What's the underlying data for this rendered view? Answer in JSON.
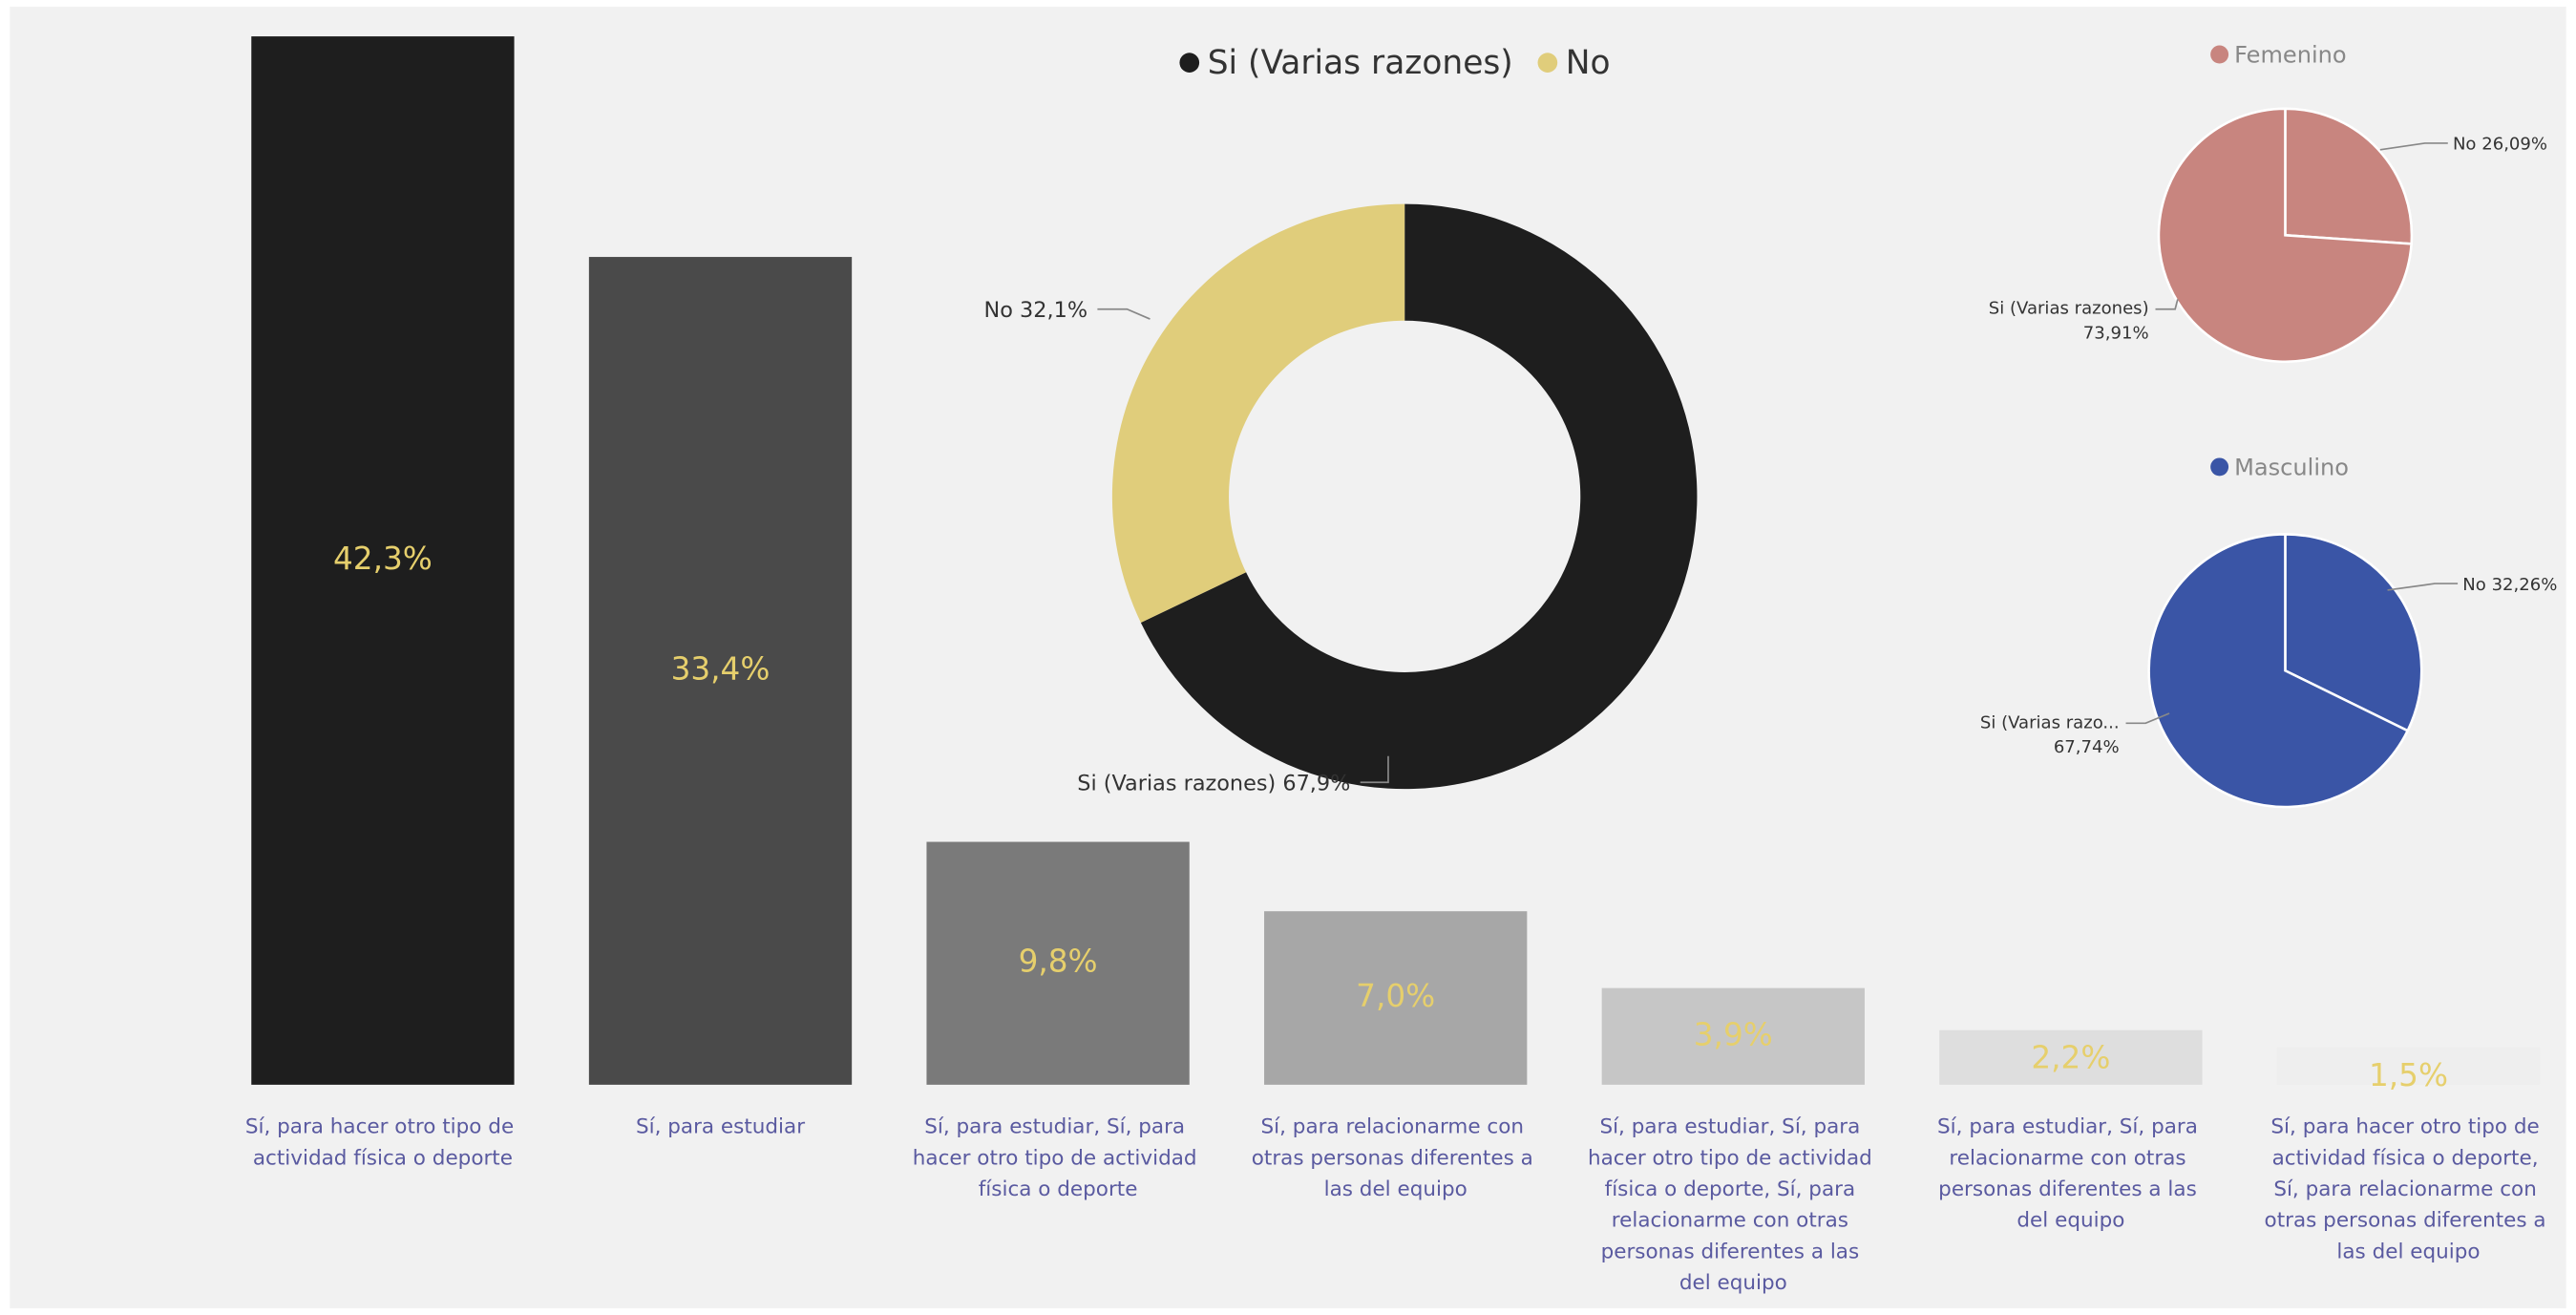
{
  "chart_data": [
    {
      "type": "bar",
      "categories": [
        "Sí, para hacer otro tipo de actividad física o deporte",
        "Sí, para estudiar",
        "Sí, para estudiar, Sí, para hacer otro tipo de actividad física o deporte",
        "Sí, para relacionarme con otras personas diferentes a las del equipo",
        "Sí, para estudiar, Sí, para hacer otro tipo de actividad física o deporte, Sí, para relacionarme con otras personas diferentes a las del equipo",
        "Sí, para estudiar, Sí, para relacionarme con otras personas diferentes a las del equipo",
        "Sí, para hacer otro tipo de actividad física o deporte, Sí, para relacionarme con otras personas diferentes a las del equipo"
      ],
      "values": [
        42.3,
        33.4,
        9.8,
        7.0,
        3.9,
        2.2,
        1.5
      ],
      "value_labels": [
        "42,3%",
        "33,4%",
        "9,8%",
        "7,0%",
        "3,9%",
        "2,2%",
        "1,5%"
      ],
      "colors": [
        "#1e1e1e",
        "#4a4a4a",
        "#7a7a7a",
        "#a7a7a7",
        "#c6c6c6",
        "#dedede",
        "#eeeeee"
      ]
    },
    {
      "type": "donut",
      "categories": [
        "Si (Varias razones)",
        "No"
      ],
      "values": [
        67.9,
        32.1
      ],
      "value_labels": [
        "Si (Varias razones) 67,9%",
        "No 32,1%"
      ],
      "colors": [
        "#1e1e1e",
        "#e0cd7b"
      ]
    },
    {
      "type": "pie",
      "title": "Femenino",
      "color": "#c8857f",
      "categories": [
        "No",
        "Si (Varias razones)"
      ],
      "values": [
        26.09,
        73.91
      ],
      "value_labels": [
        "26,09%",
        "73,91%"
      ]
    },
    {
      "type": "pie",
      "title": "Masculino",
      "color": "#3a55a6",
      "categories": [
        "No",
        "Si (Varias razo..."
      ],
      "values": [
        32.26,
        67.74
      ],
      "value_labels": [
        "32,26%",
        "67,74%"
      ]
    }
  ]
}
